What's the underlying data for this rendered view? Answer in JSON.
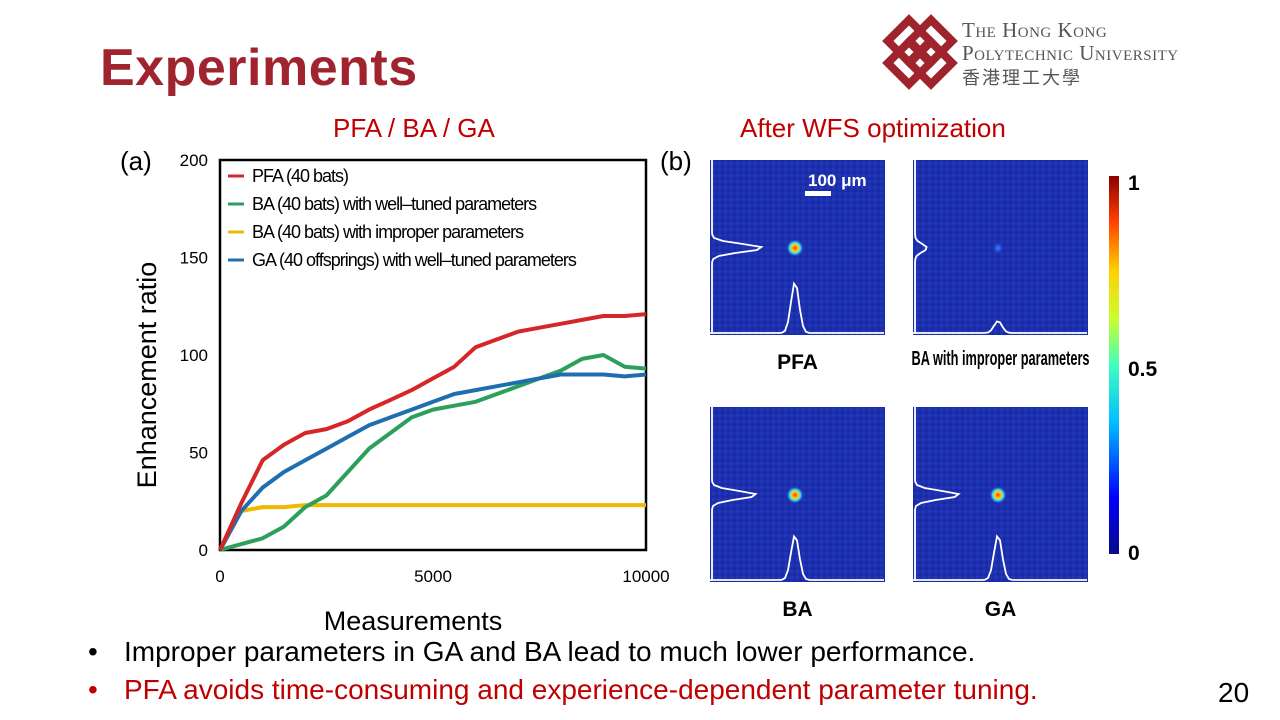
{
  "slide": {
    "title": "Experiments",
    "page_number": "20",
    "logo": {
      "line1": "The Hong Kong",
      "line2": "Polytechnic University",
      "line3": "香港理工大學"
    },
    "left_subtitle": "PFA / BA / GA",
    "right_subtitle": "After WFS optimization",
    "panel_a_label": "(a)",
    "panel_b_label": "(b)",
    "bullets": [
      {
        "text": "Improper parameters in GA and BA lead to much lower performance.",
        "color": "#000000"
      },
      {
        "text": "PFA avoids time-consuming and experience-dependent parameter tuning.",
        "color": "#c00000"
      }
    ]
  },
  "chart_data": [
    {
      "type": "line",
      "title": "",
      "xlabel": "Measurements",
      "ylabel": "Enhancement ratio",
      "xlim": [
        0,
        10000
      ],
      "ylim": [
        0,
        200
      ],
      "xticks": [
        0,
        5000,
        10000
      ],
      "yticks": [
        0,
        50,
        100,
        150,
        200
      ],
      "legend_position": "top-left",
      "x": [
        0,
        500,
        1000,
        1500,
        2000,
        2500,
        3000,
        3500,
        4000,
        4500,
        5000,
        5500,
        6000,
        6500,
        7000,
        7500,
        8000,
        8500,
        9000,
        9500,
        10000
      ],
      "series": [
        {
          "name": "PFA (40 bats)",
          "color": "#d62728",
          "values": [
            0,
            24,
            46,
            54,
            60,
            62,
            66,
            72,
            77,
            82,
            88,
            94,
            104,
            108,
            112,
            114,
            116,
            118,
            120,
            120,
            121
          ]
        },
        {
          "name": "BA (40 bats) with well–tuned parameters",
          "color": "#2ca05a",
          "values": [
            0,
            3,
            6,
            12,
            22,
            28,
            40,
            52,
            60,
            68,
            72,
            74,
            76,
            80,
            84,
            88,
            92,
            98,
            100,
            94,
            93
          ]
        },
        {
          "name": "BA (40 bats) with improper parameters",
          "color": "#f0b800",
          "values": [
            0,
            20,
            22,
            22,
            23,
            23,
            23,
            23,
            23,
            23,
            23,
            23,
            23,
            23,
            23,
            23,
            23,
            23,
            23,
            23,
            23
          ]
        },
        {
          "name": "GA (40 offsprings) with well–tuned parameters",
          "color": "#1f6fb0",
          "values": [
            0,
            20,
            32,
            40,
            46,
            52,
            58,
            64,
            68,
            72,
            76,
            80,
            82,
            84,
            86,
            88,
            90,
            90,
            90,
            89,
            90
          ]
        }
      ]
    },
    {
      "type": "heatmap",
      "title": "After WFS optimization",
      "scale_label": "100 μm",
      "colorbar": {
        "min_label": "0",
        "mid_label": "0.5",
        "max_label": "1",
        "range": [
          0,
          1
        ]
      },
      "panels": [
        {
          "label": "PFA",
          "peak_intensity": 0.85
        },
        {
          "label": "BA with improper parameters",
          "peak_intensity": 0.2
        },
        {
          "label": "BA",
          "peak_intensity": 0.75
        },
        {
          "label": "GA",
          "peak_intensity": 0.75
        }
      ]
    }
  ]
}
